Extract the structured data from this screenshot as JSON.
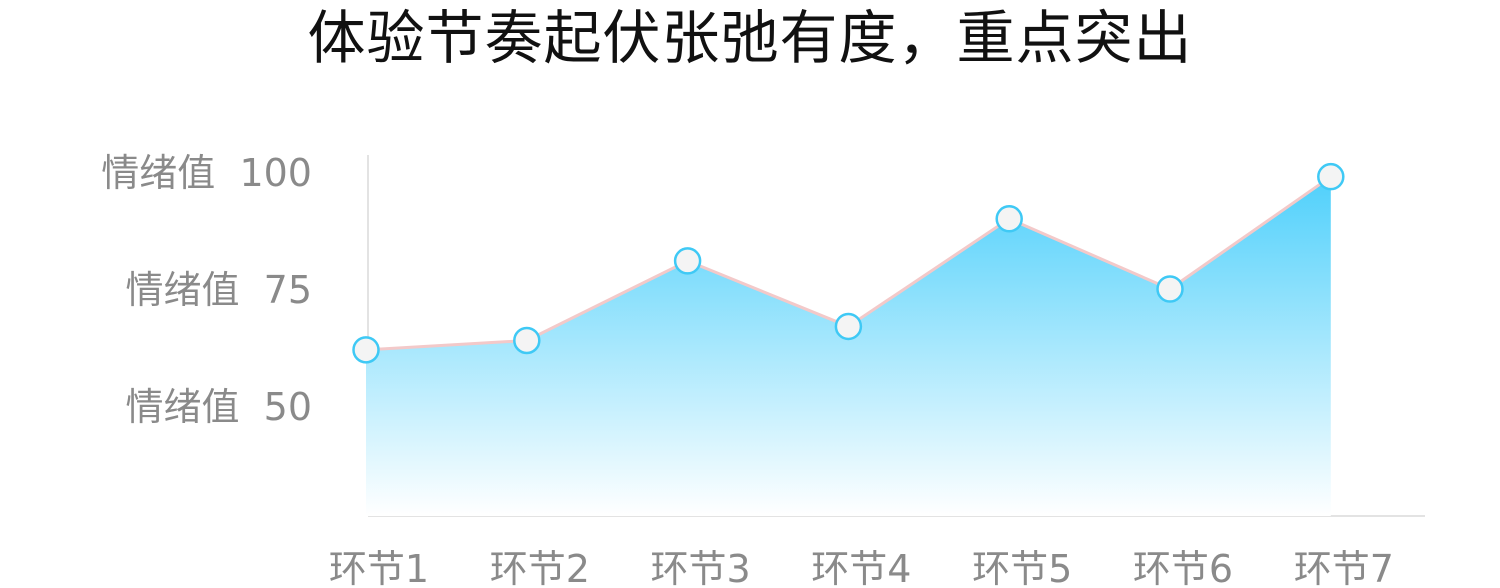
{
  "title": "体验节奏起伏张弛有度，重点突出",
  "chart_data": {
    "type": "area",
    "title": "体验节奏起伏张弛有度，重点突出",
    "categories": [
      "环节1",
      "环节2",
      "环节3",
      "环节4",
      "环节5",
      "环节6",
      "环节7"
    ],
    "series": [
      {
        "values": [
          62,
          64,
          81,
          67,
          90,
          75,
          99
        ]
      }
    ],
    "y_ticks": [
      {
        "value": 100,
        "label": "情绪值  100"
      },
      {
        "value": 75,
        "label": "情绪值  75"
      },
      {
        "value": 50,
        "label": "情绪值  50"
      }
    ],
    "ylim": [
      22,
      102
    ],
    "grid": false,
    "colors": {
      "area_top": "#4fd0fb",
      "area_bottom": "#ffffff",
      "line": "#f3c9c9",
      "marker_stroke": "#3fc9f5",
      "marker_fill": "#f4f4f4",
      "axis": "#e3e3e3",
      "tick_text": "#8a8a8a"
    }
  }
}
